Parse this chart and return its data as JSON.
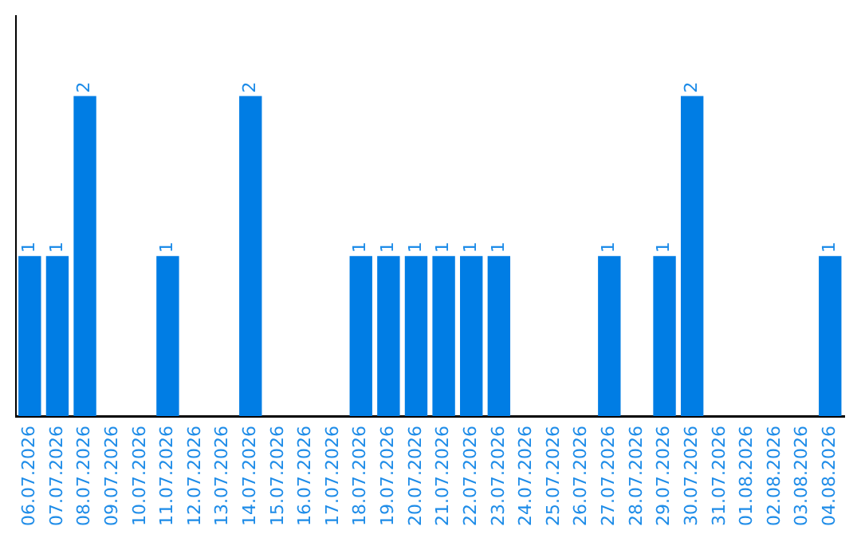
{
  "chart_data": {
    "type": "bar",
    "categories": [
      "06.07.2026",
      "07.07.2026",
      "08.07.2026",
      "09.07.2026",
      "10.07.2026",
      "11.07.2026",
      "12.07.2026",
      "13.07.2026",
      "14.07.2026",
      "15.07.2026",
      "16.07.2026",
      "17.07.2026",
      "18.07.2026",
      "19.07.2026",
      "20.07.2026",
      "21.07.2026",
      "22.07.2026",
      "23.07.2026",
      "24.07.2026",
      "25.07.2026",
      "26.07.2026",
      "27.07.2026",
      "28.07.2026",
      "29.07.2026",
      "30.07.2026",
      "31.07.2026",
      "01.08.2026",
      "02.08.2026",
      "03.08.2026",
      "04.08.2026"
    ],
    "values": [
      1,
      1,
      2,
      0,
      0,
      1,
      0,
      0,
      2,
      0,
      0,
      0,
      1,
      1,
      1,
      1,
      1,
      1,
      0,
      0,
      0,
      1,
      0,
      1,
      2,
      0,
      0,
      0,
      0,
      1
    ],
    "value_labels": [
      "1",
      "1",
      "2",
      null,
      null,
      "1",
      null,
      null,
      "2",
      null,
      null,
      null,
      "1",
      "1",
      "1",
      "1",
      "1",
      "1",
      null,
      null,
      null,
      "1",
      null,
      "1",
      "2",
      null,
      null,
      null,
      null,
      "1"
    ],
    "color": "#007de4",
    "tick_labels": "x",
    "grid": false,
    "legend": false
  }
}
